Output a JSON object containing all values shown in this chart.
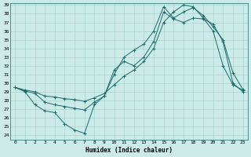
{
  "xlabel": "Humidex (Indice chaleur)",
  "bg_color": "#cceae7",
  "grid_color": "#aad4d0",
  "line_color": "#1a6b6b",
  "xlim": [
    -0.5,
    23.5
  ],
  "ylim": [
    23.5,
    39.2
  ],
  "yticks": [
    24,
    25,
    26,
    27,
    28,
    29,
    30,
    31,
    32,
    33,
    34,
    35,
    36,
    37,
    38,
    39
  ],
  "xticks": [
    0,
    1,
    2,
    3,
    4,
    5,
    6,
    7,
    8,
    9,
    10,
    11,
    12,
    13,
    14,
    15,
    16,
    17,
    18,
    19,
    20,
    21,
    22,
    23
  ],
  "line1_x": [
    0,
    1,
    2,
    3,
    4,
    5,
    6,
    7,
    8,
    9,
    10,
    11,
    12,
    13,
    14,
    15,
    16,
    17,
    18,
    19,
    20,
    21,
    22,
    23
  ],
  "line1_y": [
    29.5,
    29.0,
    27.5,
    26.8,
    26.6,
    25.3,
    24.6,
    24.2,
    27.5,
    28.5,
    31.5,
    32.5,
    32.0,
    33.0,
    34.8,
    38.2,
    37.4,
    37.0,
    37.5,
    37.4,
    36.8,
    34.8,
    30.0,
    29.0
  ],
  "line2_x": [
    0,
    1,
    2,
    3,
    4,
    5,
    6,
    7,
    8,
    9,
    10,
    11,
    12,
    13,
    14,
    15,
    16,
    17,
    18,
    19,
    20,
    21,
    22,
    23
  ],
  "line2_y": [
    29.5,
    29.1,
    28.8,
    27.8,
    27.5,
    27.3,
    27.1,
    26.9,
    27.8,
    28.5,
    31.0,
    33.0,
    33.8,
    34.5,
    36.0,
    38.8,
    37.5,
    38.2,
    38.7,
    37.8,
    36.5,
    35.0,
    31.2,
    29.3
  ],
  "line3_x": [
    0,
    1,
    2,
    3,
    4,
    5,
    6,
    7,
    8,
    9,
    10,
    11,
    12,
    13,
    14,
    15,
    16,
    17,
    18,
    19,
    20,
    21,
    22,
    23
  ],
  "line3_y": [
    29.5,
    29.2,
    29.0,
    28.5,
    28.4,
    28.2,
    28.1,
    27.9,
    28.3,
    28.8,
    29.8,
    30.8,
    31.5,
    32.5,
    34.0,
    37.0,
    38.2,
    39.0,
    38.8,
    37.5,
    36.0,
    32.0,
    29.8,
    29.2
  ]
}
